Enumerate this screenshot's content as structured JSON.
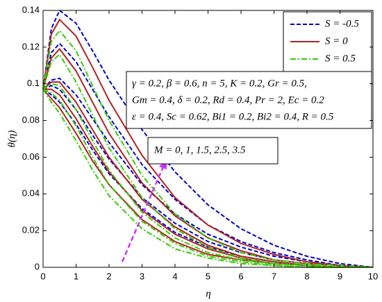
{
  "chart_data": {
    "type": "line",
    "xlabel": "η",
    "ylabel": "θ(η)",
    "x": [
      0,
      0.25,
      0.5,
      1,
      1.5,
      2,
      3,
      4,
      5,
      6,
      7,
      8,
      9,
      10
    ],
    "xlim": [
      0,
      10
    ],
    "xticks": [
      0,
      1,
      2,
      3,
      4,
      5,
      6,
      7,
      8,
      9,
      10
    ],
    "ylim": [
      0,
      0.14
    ],
    "yticks": [
      0,
      0.02,
      0.04,
      0.06,
      0.08,
      0.1,
      0.12,
      0.14
    ],
    "legend": "upper right",
    "series": [
      {
        "name": "S = -0.5",
        "color": "#0000cc",
        "linestyle": "dashed",
        "curves": [
          [
            0.097,
            0.13,
            0.14,
            0.133,
            0.118,
            0.102,
            0.075,
            0.052,
            0.034,
            0.021,
            0.012,
            0.006,
            0.002,
            0
          ],
          [
            0.097,
            0.117,
            0.122,
            0.112,
            0.097,
            0.082,
            0.056,
            0.037,
            0.023,
            0.014,
            0.008,
            0.004,
            0.001,
            0
          ],
          [
            0.097,
            0.102,
            0.103,
            0.094,
            0.081,
            0.068,
            0.045,
            0.029,
            0.018,
            0.011,
            0.006,
            0.003,
            0.001,
            0
          ],
          [
            0.097,
            0.099,
            0.097,
            0.086,
            0.072,
            0.059,
            0.038,
            0.024,
            0.014,
            0.008,
            0.004,
            0.002,
            0.001,
            0
          ],
          [
            0.097,
            0.094,
            0.09,
            0.078,
            0.064,
            0.051,
            0.032,
            0.019,
            0.011,
            0.006,
            0.003,
            0.001,
            0,
            0
          ]
        ]
      },
      {
        "name": "S = 0",
        "color": "#b22222",
        "linestyle": "solid",
        "curves": [
          [
            0.097,
            0.127,
            0.135,
            0.126,
            0.109,
            0.091,
            0.061,
            0.038,
            0.023,
            0.013,
            0.007,
            0.003,
            0.001,
            0
          ],
          [
            0.097,
            0.114,
            0.119,
            0.107,
            0.09,
            0.073,
            0.046,
            0.028,
            0.016,
            0.009,
            0.004,
            0.002,
            0.001,
            0
          ],
          [
            0.097,
            0.101,
            0.101,
            0.09,
            0.075,
            0.06,
            0.037,
            0.022,
            0.012,
            0.006,
            0.003,
            0.001,
            0,
            0
          ],
          [
            0.097,
            0.097,
            0.094,
            0.081,
            0.066,
            0.052,
            0.031,
            0.018,
            0.01,
            0.005,
            0.002,
            0.001,
            0,
            0
          ],
          [
            0.097,
            0.092,
            0.087,
            0.073,
            0.058,
            0.045,
            0.026,
            0.014,
            0.007,
            0.004,
            0.002,
            0.001,
            0,
            0
          ]
        ]
      },
      {
        "name": "S = 0.5",
        "color": "#33cc00",
        "linestyle": "dashdot",
        "curves": [
          [
            0.097,
            0.123,
            0.129,
            0.118,
            0.099,
            0.08,
            0.05,
            0.029,
            0.016,
            0.008,
            0.004,
            0.002,
            0.001,
            0
          ],
          [
            0.097,
            0.112,
            0.116,
            0.101,
            0.083,
            0.065,
            0.038,
            0.021,
            0.011,
            0.005,
            0.002,
            0.001,
            0,
            0
          ],
          [
            0.097,
            0.1,
            0.099,
            0.086,
            0.069,
            0.053,
            0.03,
            0.016,
            0.008,
            0.004,
            0.002,
            0.001,
            0,
            0
          ],
          [
            0.097,
            0.095,
            0.091,
            0.077,
            0.06,
            0.045,
            0.025,
            0.013,
            0.006,
            0.003,
            0.001,
            0,
            0,
            0
          ],
          [
            0.097,
            0.09,
            0.084,
            0.069,
            0.053,
            0.039,
            0.021,
            0.01,
            0.005,
            0.002,
            0.001,
            0,
            0,
            0
          ]
        ]
      }
    ],
    "annotations": {
      "parameters": [
        "γ = 0.2, β = 0.6, n = 5, K = 0.2, Gr = 0.5,",
        "Gm = 0.4, δ = 0.2, Rd = 0.4, Pr = 2, Ec = 0.2",
        "ε = 0.4, Sc = 0.62, Bi1 = 0.2, Bi2 = 0.4, R = 0.5"
      ],
      "m_values": "M = 0, 1, 1.5, 2.5, 3.5"
    }
  }
}
